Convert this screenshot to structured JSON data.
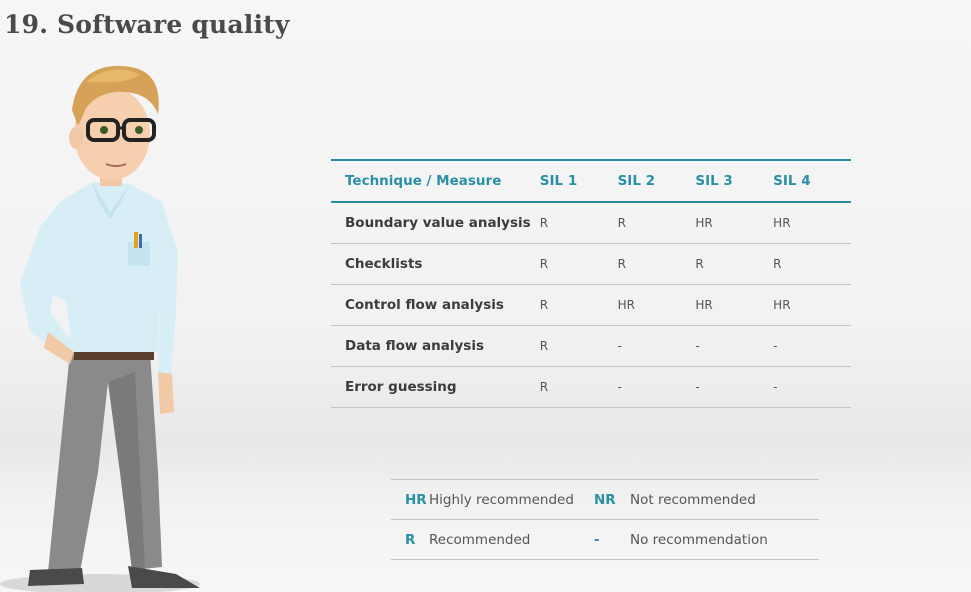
{
  "slide": {
    "title": "19. Software quality"
  },
  "table": {
    "headers": [
      "Technique / Measure",
      "SIL 1",
      "SIL 2",
      "SIL 3",
      "SIL 4"
    ],
    "rows": [
      {
        "technique": "Boundary value analysis",
        "values": [
          "R",
          "R",
          "HR",
          "HR"
        ]
      },
      {
        "technique": "Checklists",
        "values": [
          "R",
          "R",
          "R",
          "R"
        ]
      },
      {
        "technique": "Control flow analysis",
        "values": [
          "R",
          "HR",
          "HR",
          "HR"
        ]
      },
      {
        "technique": "Data flow analysis",
        "values": [
          "R",
          "-",
          "-",
          "-"
        ]
      },
      {
        "technique": "Error guessing",
        "values": [
          "R",
          "-",
          "-",
          "-"
        ]
      }
    ]
  },
  "legend": {
    "rows": [
      {
        "abbr1": "HR",
        "desc1": "Highly recommended",
        "abbr2": "NR",
        "desc2": "Not recommended"
      },
      {
        "abbr1": "R",
        "desc1": "Recommended",
        "abbr2": "-",
        "desc2": "No recommendation"
      }
    ]
  },
  "colors": {
    "accent": "#2b8fa6",
    "title": "#4a4a4a",
    "body_text": "#3c3c3c"
  }
}
